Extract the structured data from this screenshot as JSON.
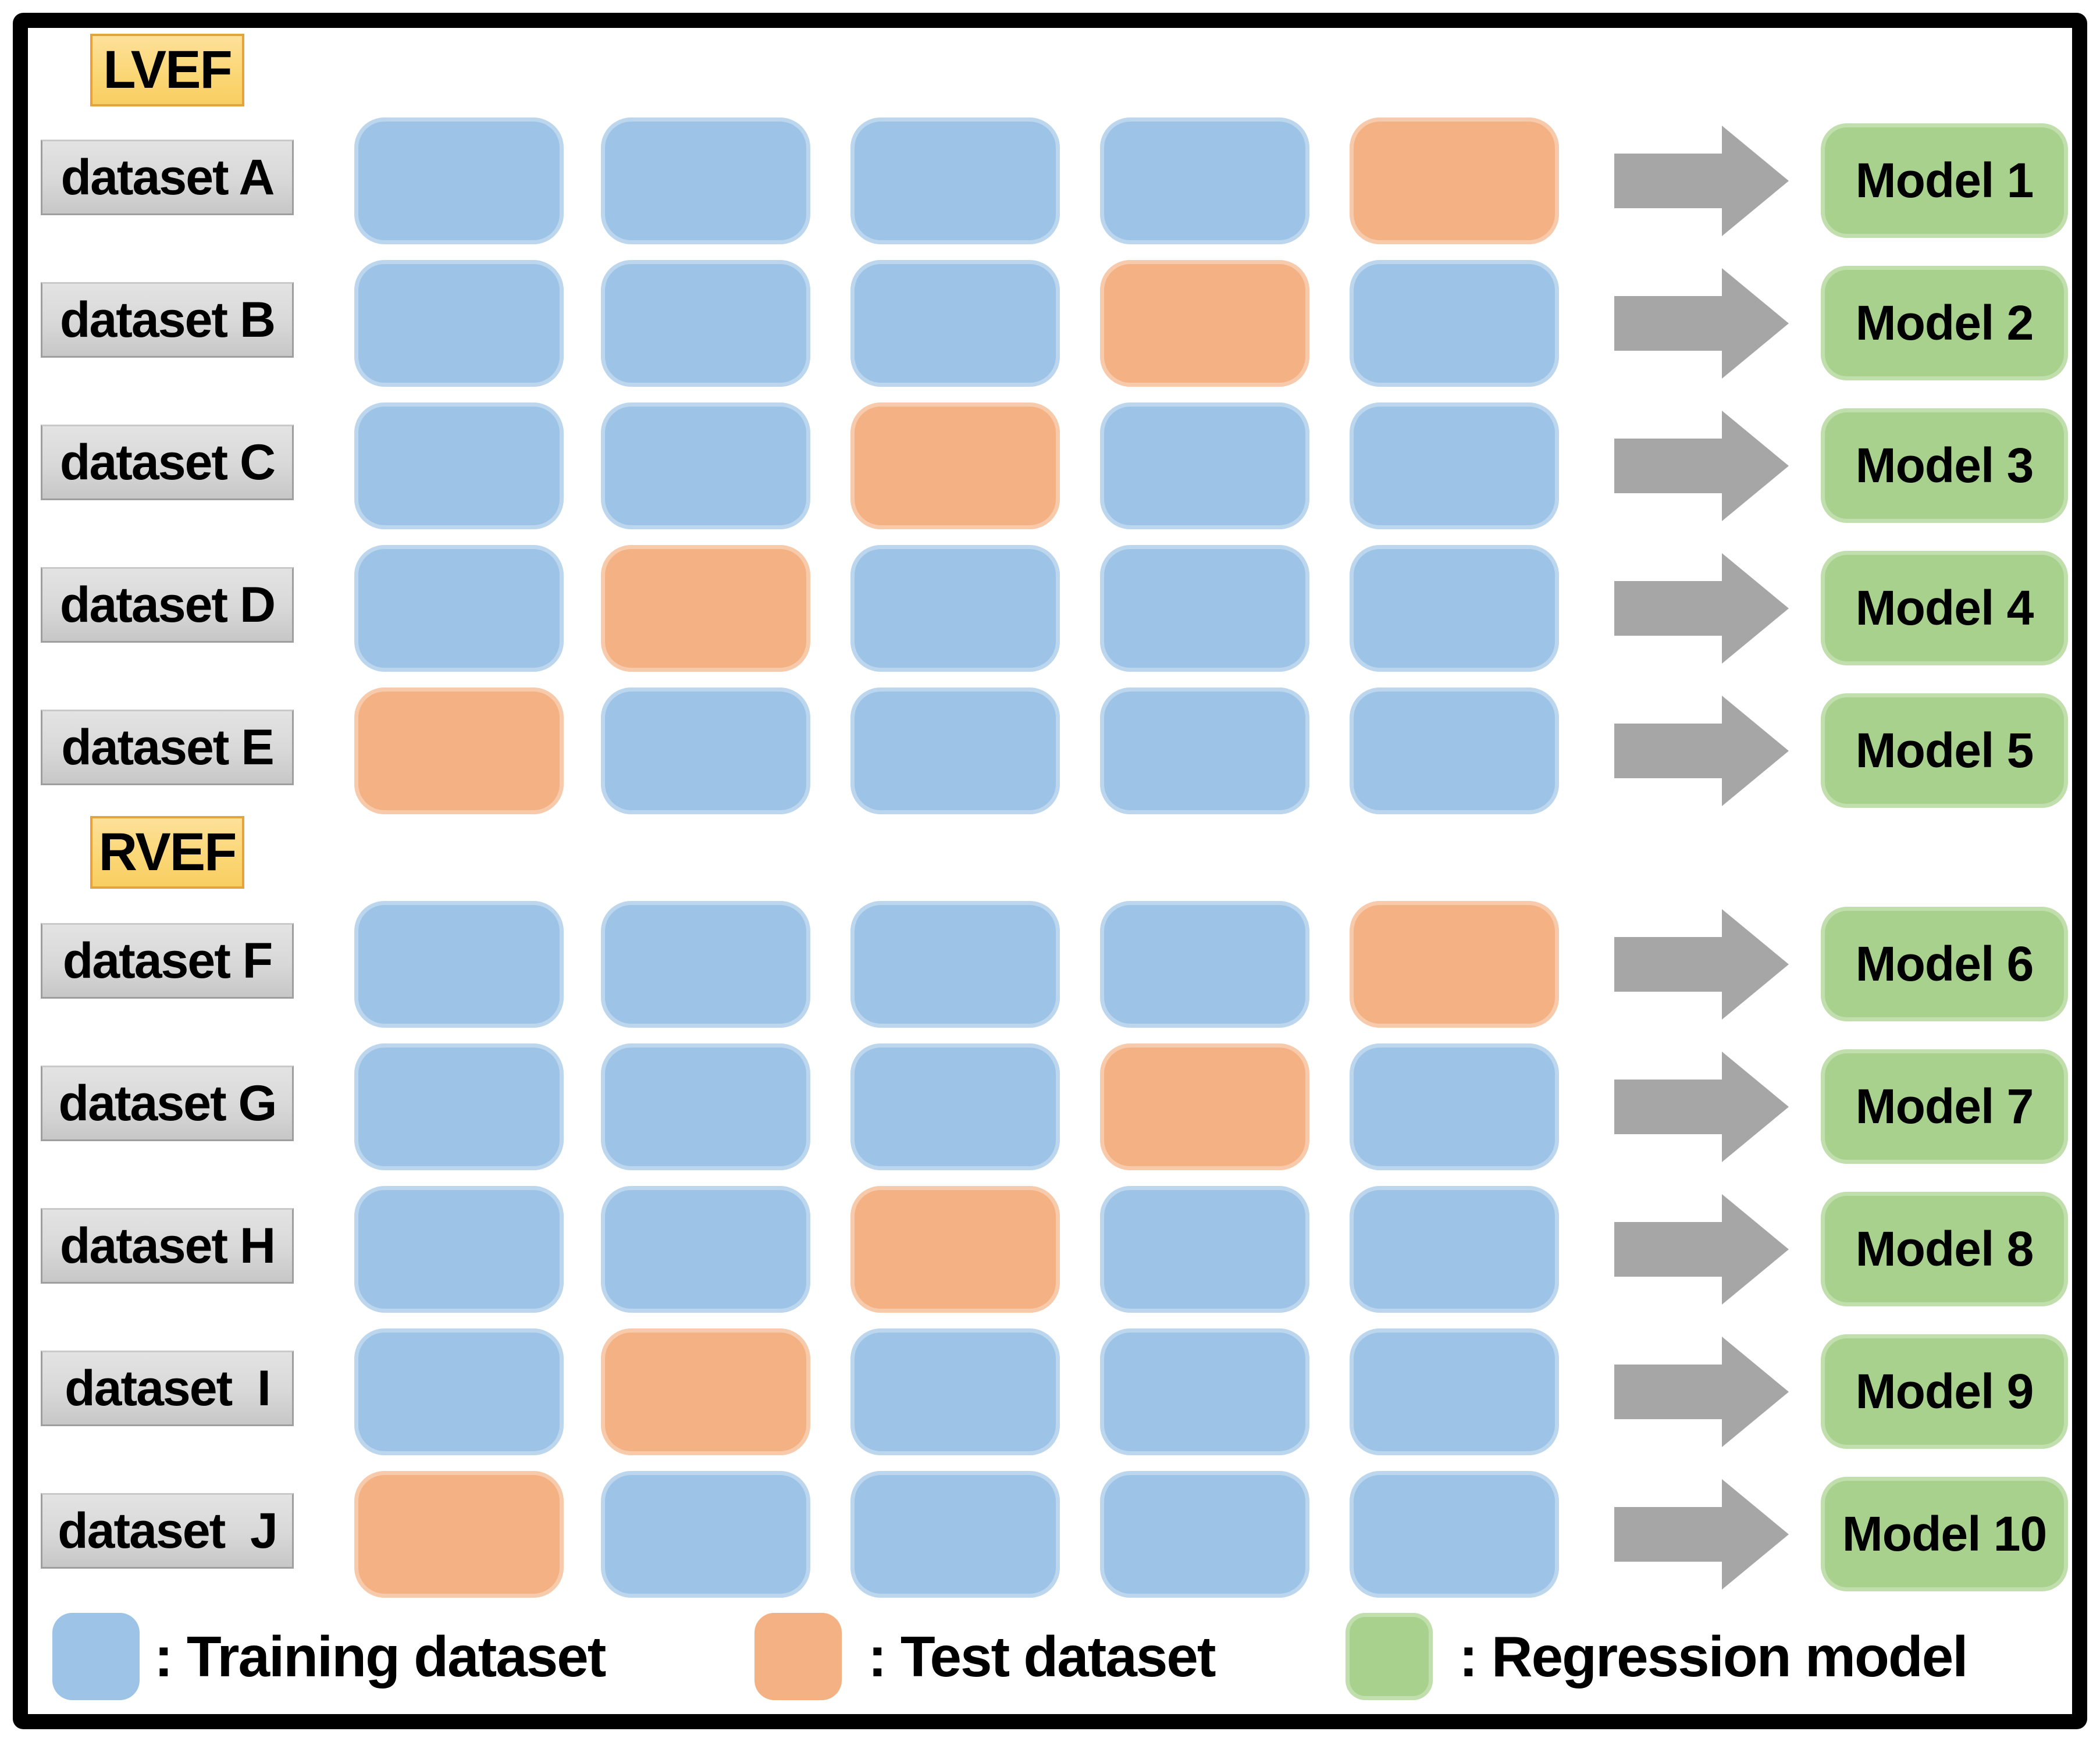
{
  "sections": [
    {
      "label": "LVEF",
      "rows": [
        {
          "label": "dataset A",
          "blocks": [
            "train",
            "train",
            "train",
            "train",
            "test"
          ],
          "model": "Model 1"
        },
        {
          "label": "dataset B",
          "blocks": [
            "train",
            "train",
            "train",
            "test",
            "train"
          ],
          "model": "Model 2"
        },
        {
          "label": "dataset C",
          "blocks": [
            "train",
            "train",
            "test",
            "train",
            "train"
          ],
          "model": "Model 3"
        },
        {
          "label": "dataset D",
          "blocks": [
            "train",
            "test",
            "train",
            "train",
            "train"
          ],
          "model": "Model 4"
        },
        {
          "label": "dataset E",
          "blocks": [
            "test",
            "train",
            "train",
            "train",
            "train"
          ],
          "model": "Model 5"
        }
      ]
    },
    {
      "label": "RVEF",
      "rows": [
        {
          "label": "dataset F",
          "blocks": [
            "train",
            "train",
            "train",
            "train",
            "test"
          ],
          "model": "Model 6"
        },
        {
          "label": "dataset G",
          "blocks": [
            "train",
            "train",
            "train",
            "test",
            "train"
          ],
          "model": "Model 7"
        },
        {
          "label": "dataset H",
          "blocks": [
            "train",
            "train",
            "test",
            "train",
            "train"
          ],
          "model": "Model 8"
        },
        {
          "label": "dataset  I",
          "blocks": [
            "train",
            "test",
            "train",
            "train",
            "train"
          ],
          "model": "Model 9"
        },
        {
          "label": "dataset  J",
          "blocks": [
            "test",
            "train",
            "train",
            "train",
            "train"
          ],
          "model": "Model 10"
        }
      ]
    }
  ],
  "legend": [
    {
      "type": "train",
      "label": ": Training dataset"
    },
    {
      "type": "test",
      "label": ": Test dataset"
    },
    {
      "type": "model",
      "label": ": Regression model"
    }
  ],
  "colors": {
    "train": "#9DC3E6",
    "test": "#F4B183",
    "model_box": "#A9D18E",
    "section_label_bg": "#FBD776",
    "section_label_border": "#E5A33C",
    "dataset_label_border": "#9E9E9E",
    "arrow": "#A6A6A6",
    "frame": "#000000"
  }
}
